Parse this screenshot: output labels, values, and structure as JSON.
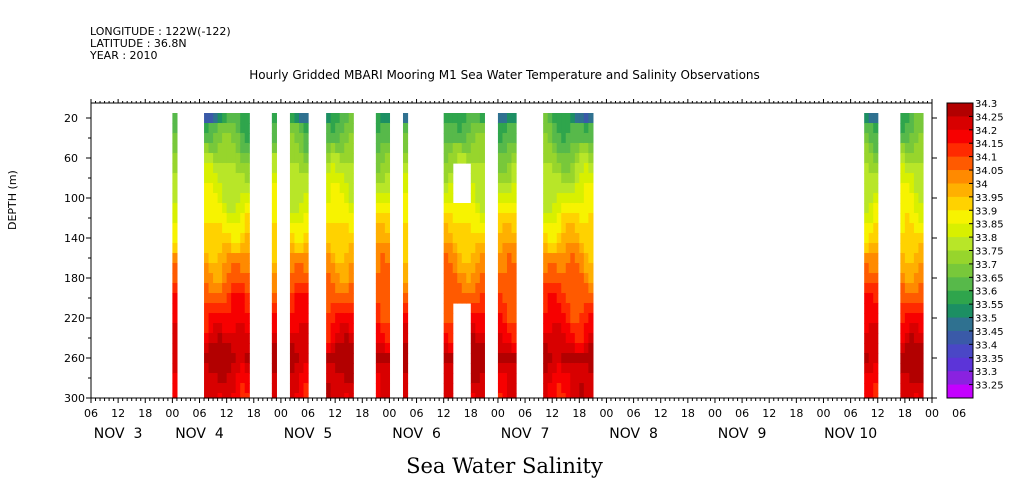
{
  "header": {
    "longitude": "LONGITUDE : 122W(-122)",
    "latitude": "LATITUDE : 36.8N",
    "year": "YEAR : 2010"
  },
  "title": "Hourly Gridded MBARI Mooring M1 Sea Water Temperature and Salinity Observations",
  "footer_title": "Sea Water Salinity",
  "chart_data": {
    "type": "heatmap",
    "title": "Hourly Gridded MBARI Mooring M1 Sea Water Temperature and Salinity Observations",
    "xlabel": "",
    "ylabel": "DEPTH (m)",
    "ylim": [
      300,
      5
    ],
    "y_reversed": true,
    "yticks": [
      20,
      60,
      100,
      140,
      180,
      220,
      260,
      300
    ],
    "xlim_hours": [
      0,
      186
    ],
    "xtick_hours_labels": [
      "06",
      "12",
      "18",
      "00",
      "06",
      "12",
      "18",
      "00",
      "06",
      "12",
      "18",
      "00",
      "06",
      "12",
      "18",
      "00",
      "06",
      "12",
      "18",
      "00",
      "06",
      "12",
      "18",
      "00",
      "06",
      "12",
      "18",
      "00",
      "06",
      "12",
      "18",
      "00",
      "06"
    ],
    "day_labels": [
      "NOV  3",
      "NOV  4",
      "NOV  5",
      "NOV  6",
      "NOV  7",
      "NOV  8",
      "NOV  9",
      "NOV 10"
    ],
    "colorbar": {
      "levels": [
        "34.3",
        "34.25",
        "34.2",
        "34.15",
        "34.1",
        "34.05",
        "34",
        "33.95",
        "33.9",
        "33.85",
        "33.8",
        "33.75",
        "33.7",
        "33.65",
        "33.6",
        "33.55",
        "33.5",
        "33.45",
        "33.4",
        "33.35",
        "33.3",
        "33.25"
      ],
      "colors": [
        "#b20000",
        "#d80000",
        "#f70000",
        "#ff2a00",
        "#ff5a00",
        "#ff8a00",
        "#ffb000",
        "#ffd200",
        "#f7f300",
        "#d8f000",
        "#b8e628",
        "#97d52c",
        "#78c83a",
        "#57b94a",
        "#2fa54c",
        "#1c8f63",
        "#2f7190",
        "#3a5aa8",
        "#4a47c6",
        "#5c34d8",
        "#8a22e0",
        "#c400ff"
      ]
    },
    "data_segments_hours": [
      {
        "start": 18,
        "end": 19
      },
      {
        "start": 25,
        "end": 35
      },
      {
        "start": 40,
        "end": 41
      },
      {
        "start": 44,
        "end": 48
      },
      {
        "start": 52,
        "end": 58
      },
      {
        "start": 63,
        "end": 66
      },
      {
        "start": 69,
        "end": 70
      },
      {
        "start": 78,
        "end": 87,
        "gap_depths": [
          [
            60,
            100
          ],
          [
            200,
            300
          ]
        ],
        "gap_hours": [
          80,
          84
        ]
      },
      {
        "start": 90,
        "end": 94
      },
      {
        "start": 100,
        "end": 111
      },
      {
        "start": 171,
        "end": 174
      },
      {
        "start": 179,
        "end": 184
      }
    ],
    "salinity_profile_by_depth": [
      {
        "depth": 20,
        "value": 33.6
      },
      {
        "depth": 40,
        "value": 33.65
      },
      {
        "depth": 60,
        "value": 33.72
      },
      {
        "depth": 80,
        "value": 33.78
      },
      {
        "depth": 100,
        "value": 33.82
      },
      {
        "depth": 120,
        "value": 33.88
      },
      {
        "depth": 140,
        "value": 33.93
      },
      {
        "depth": 160,
        "value": 34.0
      },
      {
        "depth": 180,
        "value": 34.05
      },
      {
        "depth": 200,
        "value": 34.1
      },
      {
        "depth": 220,
        "value": 34.15
      },
      {
        "depth": 240,
        "value": 34.2
      },
      {
        "depth": 260,
        "value": 34.28
      },
      {
        "depth": 280,
        "value": 34.22
      },
      {
        "depth": 300,
        "value": 34.2
      }
    ]
  }
}
